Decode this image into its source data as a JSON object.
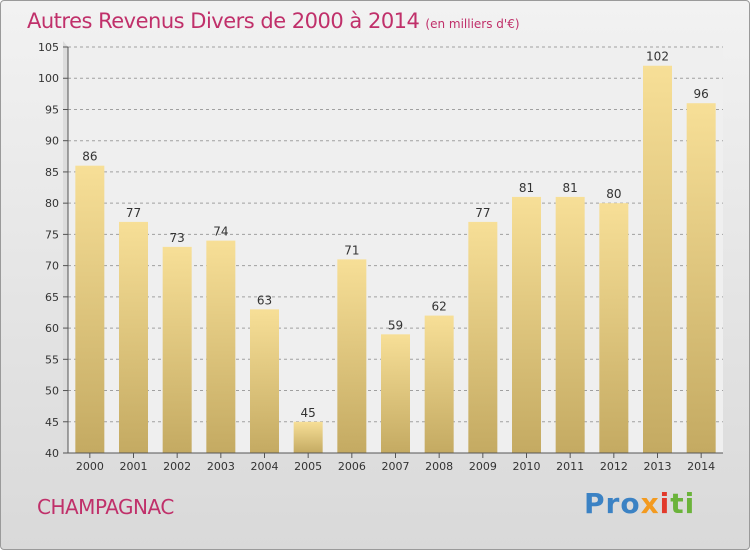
{
  "colors": {
    "title": "#c0306a",
    "bar_light": "#f7df97",
    "bar_dark": "#c4aa62",
    "axis": "#555555",
    "grid": "#a0a0a0",
    "plot_bg": "#efefef"
  },
  "chart_data": {
    "type": "bar",
    "title": "Autres Revenus Divers de 2000 à 2014",
    "subtitle": "(en milliers d'€)",
    "categories": [
      "2000",
      "2001",
      "2002",
      "2003",
      "2004",
      "2005",
      "2006",
      "2007",
      "2008",
      "2009",
      "2010",
      "2011",
      "2012",
      "2013",
      "2014"
    ],
    "values": [
      86,
      77,
      73,
      74,
      63,
      45,
      71,
      59,
      62,
      77,
      81,
      81,
      80,
      102,
      96
    ],
    "ylim": [
      40,
      105
    ],
    "yticks": [
      40,
      45,
      50,
      55,
      60,
      65,
      70,
      75,
      80,
      85,
      90,
      95,
      100,
      105
    ],
    "xlabel": "",
    "ylabel": "",
    "grid": true
  },
  "footer": {
    "commune": "CHAMPAGNAC",
    "brand": {
      "part1": "Pro",
      "part2": "x",
      "part3": "i",
      "part4": "ti"
    }
  }
}
